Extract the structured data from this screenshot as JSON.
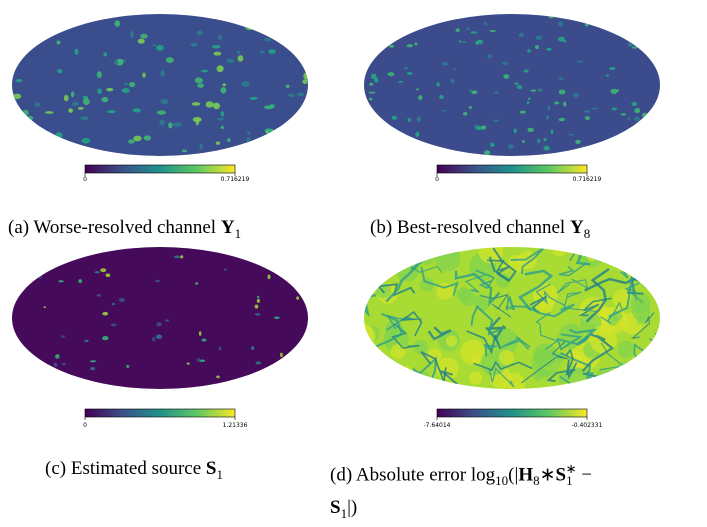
{
  "panels": [
    {
      "colorbar": {
        "min": 0,
        "max": 0.716219
      },
      "caption": [
        "(a) Worse-resolved channel ",
        "Y",
        "1"
      ]
    },
    {
      "colorbar": {
        "min": 0,
        "max": 0.716219
      },
      "caption": [
        "(b) Best-resolved channel ",
        "Y",
        "8"
      ]
    },
    {
      "colorbar": {
        "min": 0,
        "max": 1.21336
      },
      "caption": [
        "(c) Estimated source ",
        "S",
        "1"
      ]
    },
    {
      "colorbar": {
        "min": -7.64014,
        "max": -0.402331
      },
      "caption": [
        "(d) Absolute error ",
        "log",
        "10",
        "(|",
        "H",
        "8",
        "∗",
        "S",
        "1",
        "∗",
        " −",
        "S",
        "1",
        "|)"
      ]
    }
  ]
}
